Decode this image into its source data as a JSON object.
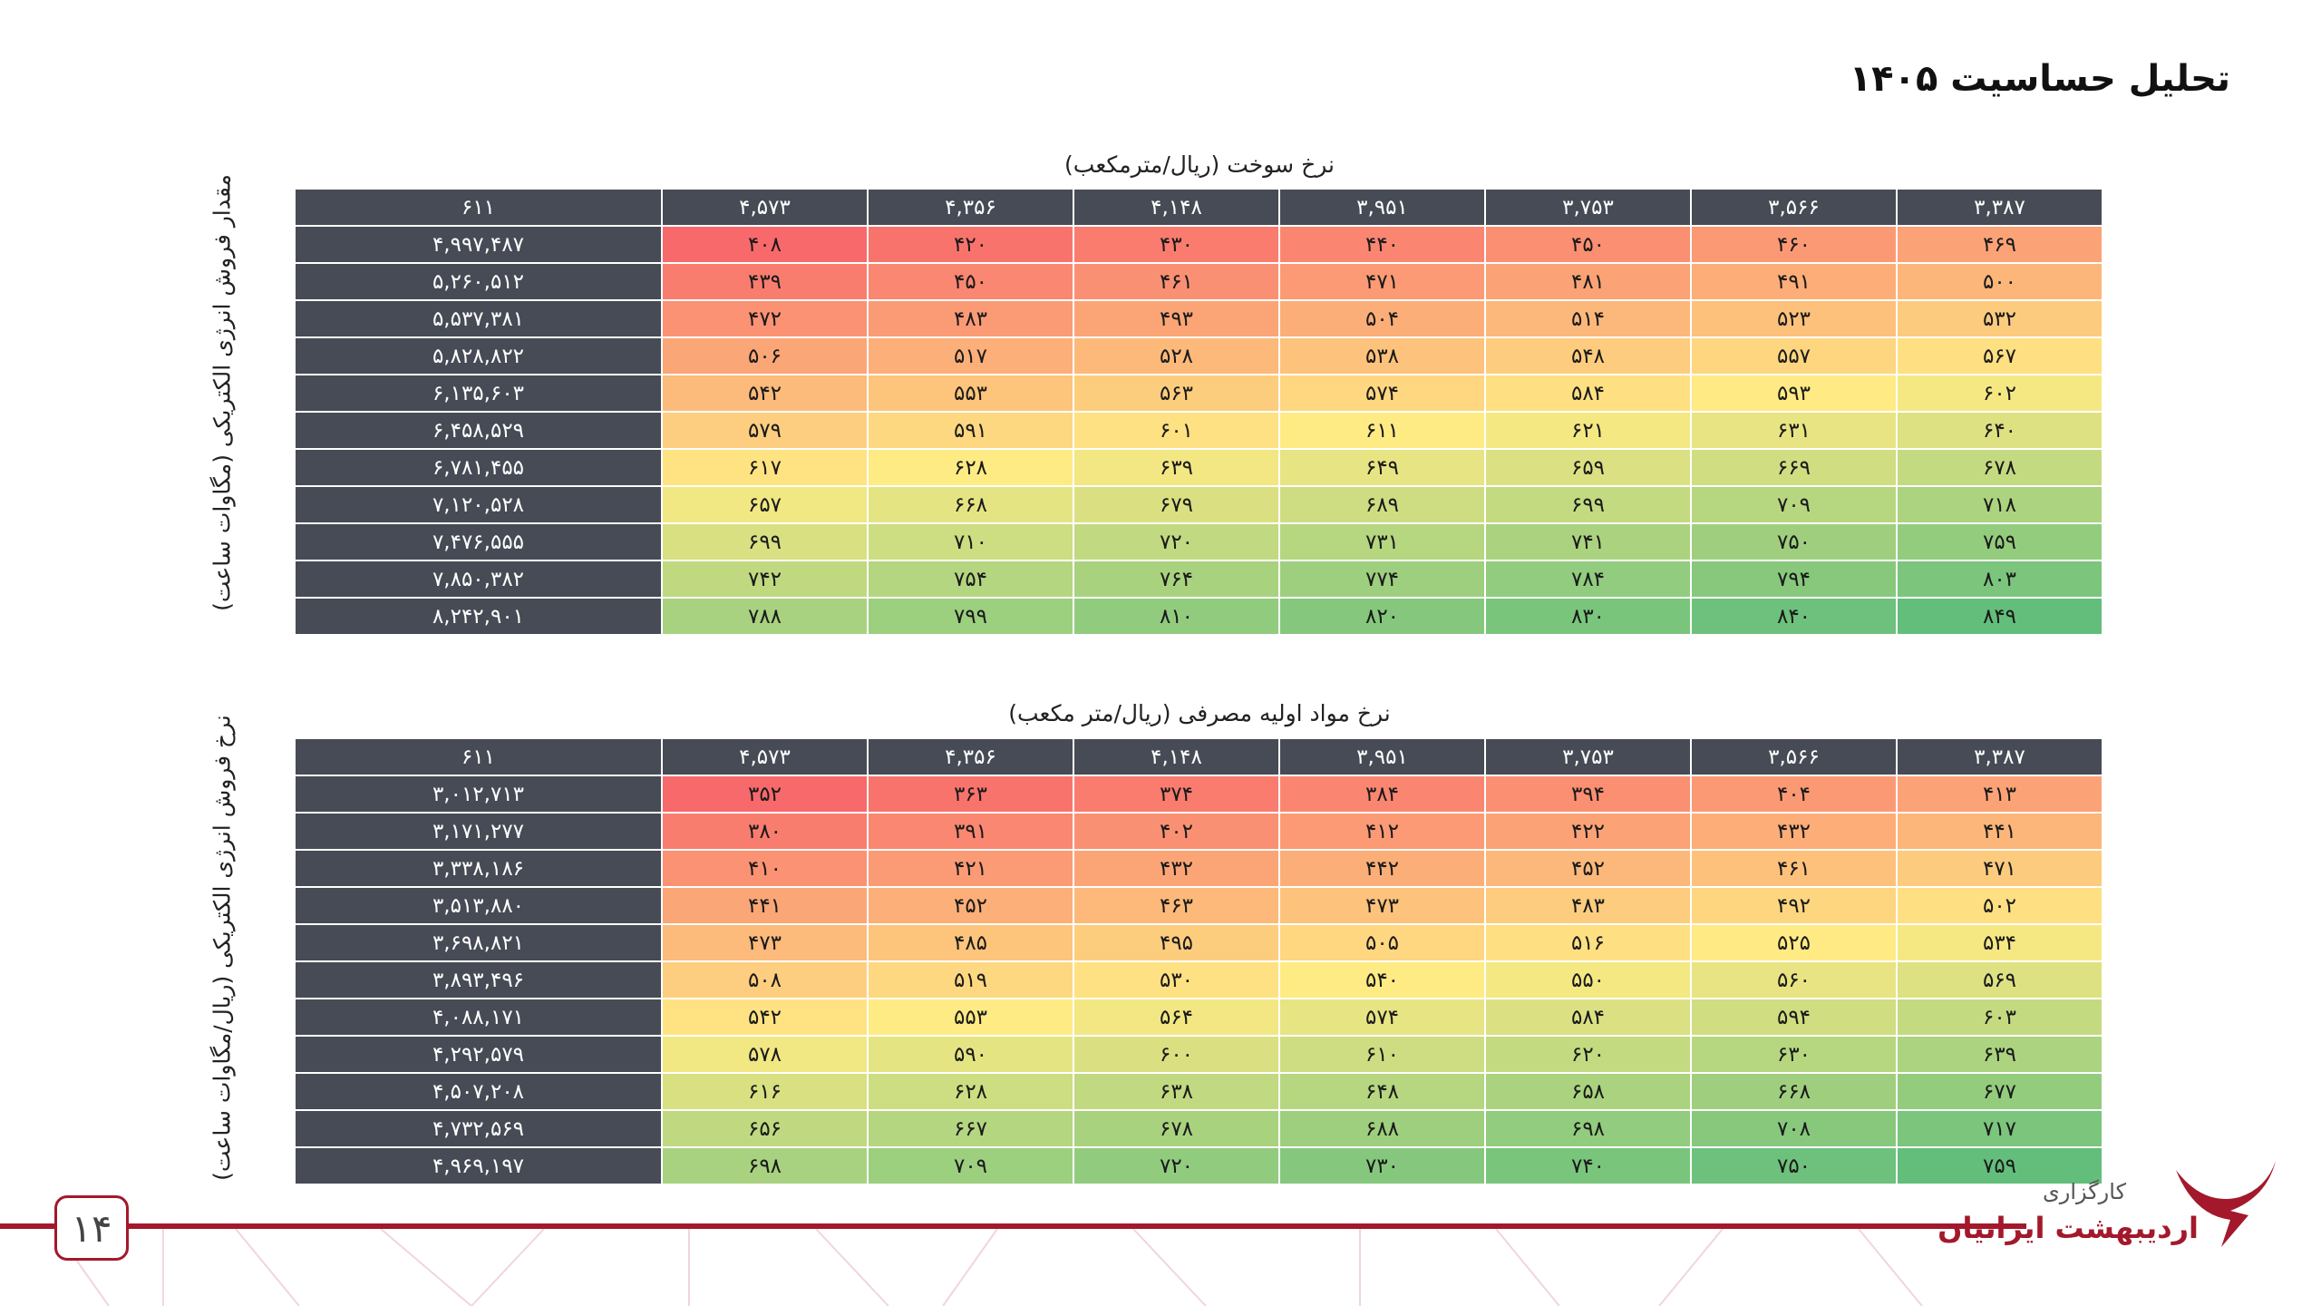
{
  "header": {
    "title": "تحلیل حساسیت ۱۴۰۵"
  },
  "tables": [
    {
      "caption": "نرخ سوخت (ریال/مترمکعب)",
      "row_axis_label": "مقدار فروش انرژی الکتریکی (مگاوات ساعت)",
      "header": [
        "۳,۳۸۷",
        "۳,۵۶۶",
        "۳,۷۵۳",
        "۳,۹۵۱",
        "۴,۱۴۸",
        "۴,۳۵۶",
        "۴,۵۷۳",
        "۶۱۱"
      ],
      "rows": [
        [
          "۴۶۹",
          "۴۶۰",
          "۴۵۰",
          "۴۴۰",
          "۴۳۰",
          "۴۲۰",
          "۴۰۸",
          "۴,۹۹۷,۴۸۷"
        ],
        [
          "۵۰۰",
          "۴۹۱",
          "۴۸۱",
          "۴۷۱",
          "۴۶۱",
          "۴۵۰",
          "۴۳۹",
          "۵,۲۶۰,۵۱۲"
        ],
        [
          "۵۳۲",
          "۵۲۳",
          "۵۱۴",
          "۵۰۴",
          "۴۹۳",
          "۴۸۳",
          "۴۷۲",
          "۵,۵۳۷,۳۸۱"
        ],
        [
          "۵۶۷",
          "۵۵۷",
          "۵۴۸",
          "۵۳۸",
          "۵۲۸",
          "۵۱۷",
          "۵۰۶",
          "۵,۸۲۸,۸۲۲"
        ],
        [
          "۶۰۲",
          "۵۹۳",
          "۵۸۴",
          "۵۷۴",
          "۵۶۳",
          "۵۵۳",
          "۵۴۲",
          "۶,۱۳۵,۶۰۳"
        ],
        [
          "۶۴۰",
          "۶۳۱",
          "۶۲۱",
          "۶۱۱",
          "۶۰۱",
          "۵۹۱",
          "۵۷۹",
          "۶,۴۵۸,۵۲۹"
        ],
        [
          "۶۷۸",
          "۶۶۹",
          "۶۵۹",
          "۶۴۹",
          "۶۳۹",
          "۶۲۸",
          "۶۱۷",
          "۶,۷۸۱,۴۵۵"
        ],
        [
          "۷۱۸",
          "۷۰۹",
          "۶۹۹",
          "۶۸۹",
          "۶۷۹",
          "۶۶۸",
          "۶۵۷",
          "۷,۱۲۰,۵۲۸"
        ],
        [
          "۷۵۹",
          "۷۵۰",
          "۷۴۱",
          "۷۳۱",
          "۷۲۰",
          "۷۱۰",
          "۶۹۹",
          "۷,۴۷۶,۵۵۵"
        ],
        [
          "۸۰۳",
          "۷۹۴",
          "۷۸۴",
          "۷۷۴",
          "۷۶۴",
          "۷۵۴",
          "۷۴۲",
          "۷,۸۵۰,۳۸۲"
        ],
        [
          "۸۴۹",
          "۸۴۰",
          "۸۳۰",
          "۸۲۰",
          "۸۱۰",
          "۷۹۹",
          "۷۸۸",
          "۸,۲۴۲,۹۰۱"
        ]
      ]
    },
    {
      "caption": "نرخ مواد اولیه مصرفی (ریال/متر مکعب)",
      "row_axis_label": "نرخ فروش انرژی الکتریکی (ریال/مگاوات ساعت)",
      "header": [
        "۳,۳۸۷",
        "۳,۵۶۶",
        "۳,۷۵۳",
        "۳,۹۵۱",
        "۴,۱۴۸",
        "۴,۳۵۶",
        "۴,۵۷۳",
        "۶۱۱"
      ],
      "rows": [
        [
          "۴۱۳",
          "۴۰۴",
          "۳۹۴",
          "۳۸۴",
          "۳۷۴",
          "۳۶۳",
          "۳۵۲",
          "۳,۰۱۲,۷۱۳"
        ],
        [
          "۴۴۱",
          "۴۳۲",
          "۴۲۲",
          "۴۱۲",
          "۴۰۲",
          "۳۹۱",
          "۳۸۰",
          "۳,۱۷۱,۲۷۷"
        ],
        [
          "۴۷۱",
          "۴۶۱",
          "۴۵۲",
          "۴۴۲",
          "۴۳۲",
          "۴۲۱",
          "۴۱۰",
          "۳,۳۳۸,۱۸۶"
        ],
        [
          "۵۰۲",
          "۴۹۲",
          "۴۸۳",
          "۴۷۳",
          "۴۶۳",
          "۴۵۲",
          "۴۴۱",
          "۳,۵۱۳,۸۸۰"
        ],
        [
          "۵۳۴",
          "۵۲۵",
          "۵۱۶",
          "۵۰۵",
          "۴۹۵",
          "۴۸۵",
          "۴۷۳",
          "۳,۶۹۸,۸۲۱"
        ],
        [
          "۵۶۹",
          "۵۶۰",
          "۵۵۰",
          "۵۴۰",
          "۵۳۰",
          "۵۱۹",
          "۵۰۸",
          "۳,۸۹۳,۴۹۶"
        ],
        [
          "۶۰۳",
          "۵۹۴",
          "۵۸۴",
          "۵۷۴",
          "۵۶۴",
          "۵۵۳",
          "۵۴۲",
          "۴,۰۸۸,۱۷۱"
        ],
        [
          "۶۳۹",
          "۶۳۰",
          "۶۲۰",
          "۶۱۰",
          "۶۰۰",
          "۵۹۰",
          "۵۷۸",
          "۴,۲۹۲,۵۷۹"
        ],
        [
          "۶۷۷",
          "۶۶۸",
          "۶۵۸",
          "۶۴۸",
          "۶۳۸",
          "۶۲۸",
          "۶۱۶",
          "۴,۵۰۷,۲۰۸"
        ],
        [
          "۷۱۷",
          "۷۰۸",
          "۶۹۸",
          "۶۸۸",
          "۶۷۸",
          "۶۶۷",
          "۶۵۶",
          "۴,۷۳۲,۵۶۹"
        ],
        [
          "۷۵۹",
          "۷۵۰",
          "۷۴۰",
          "۷۳۰",
          "۷۲۰",
          "۷۰۹",
          "۶۹۸",
          "۴,۹۶۹,۱۹۷"
        ]
      ]
    }
  ],
  "footer": {
    "page_number": "۱۴",
    "brand_line1": "کارگزاری",
    "brand_line2": "اردیبهشت ایرانیان"
  }
}
